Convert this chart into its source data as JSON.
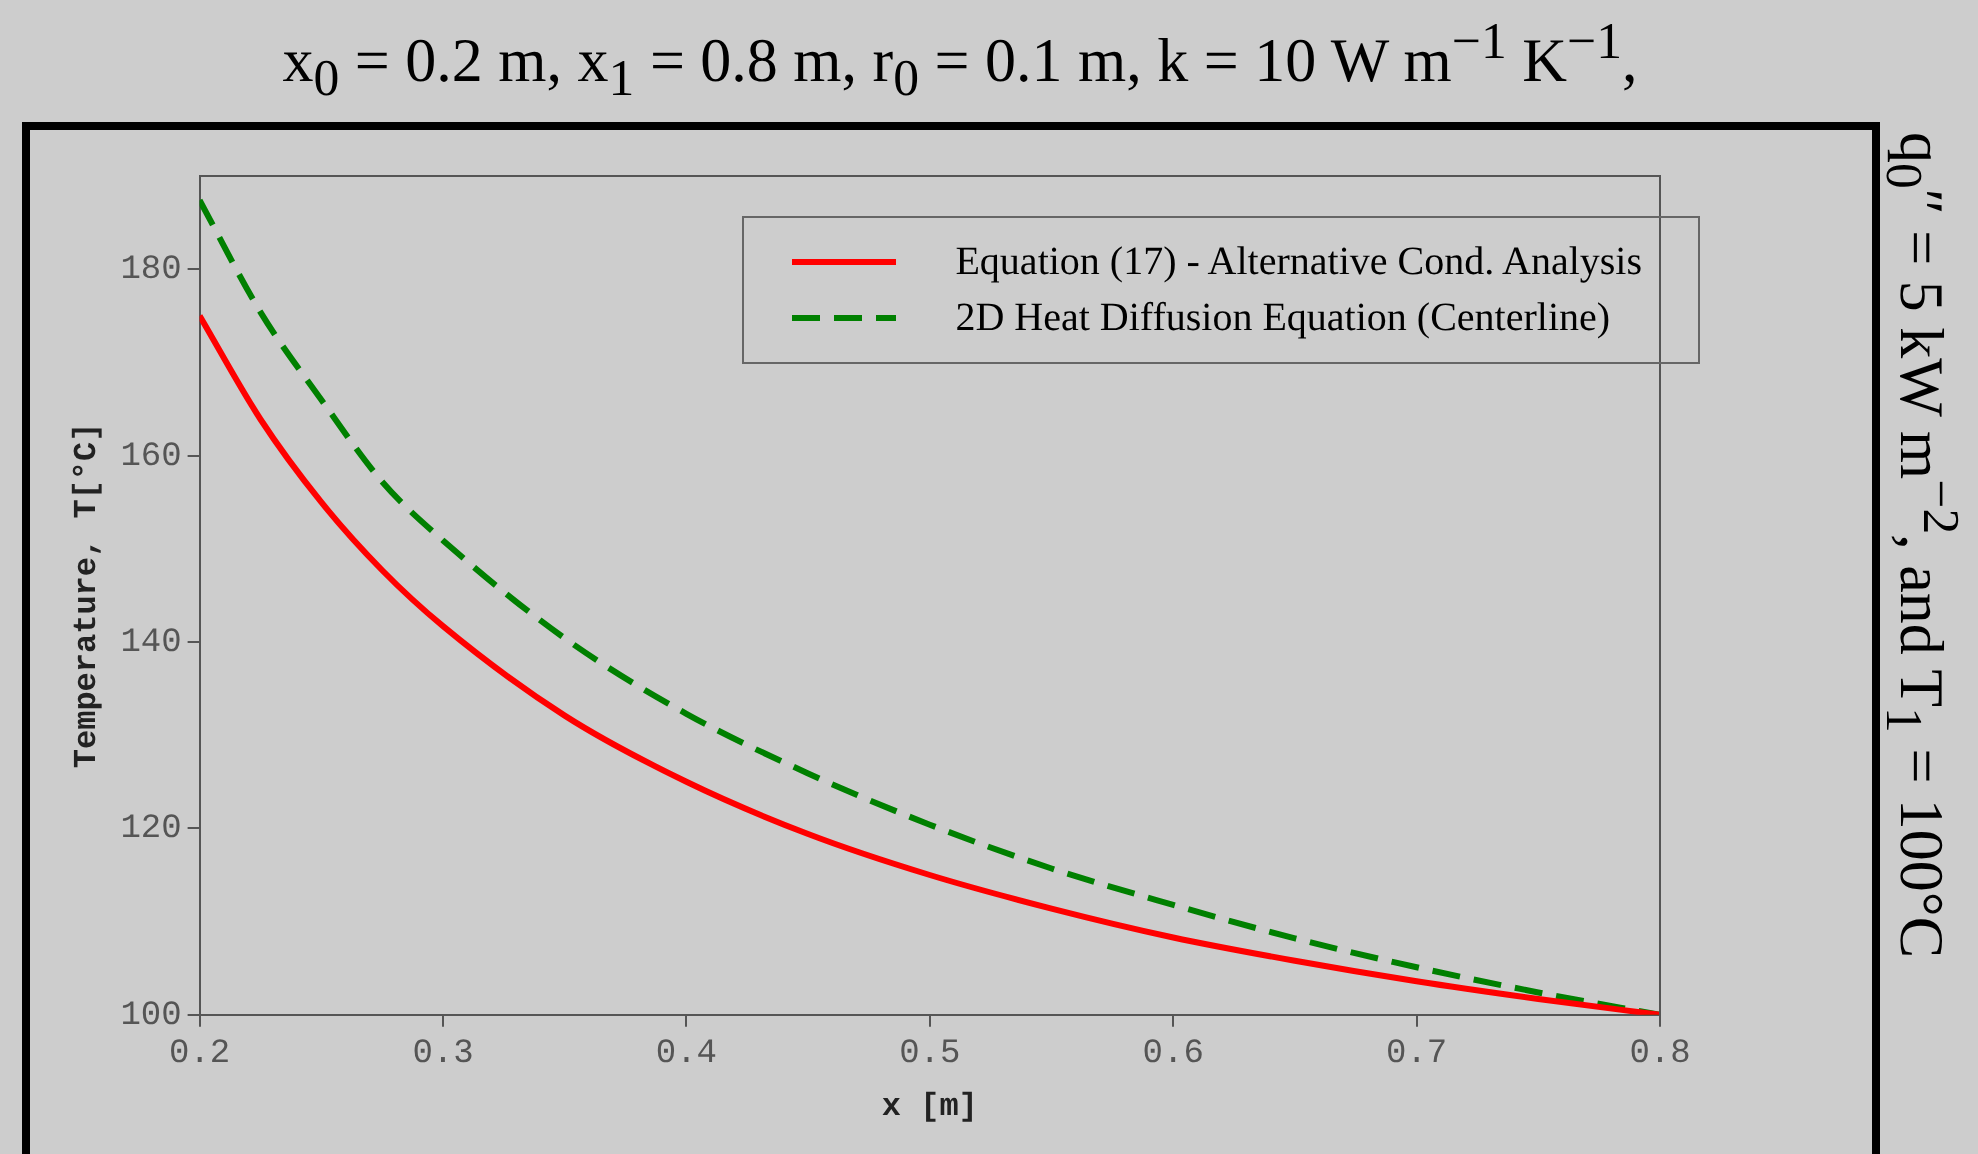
{
  "chart_data": {
    "type": "line",
    "title": "x$_{0}$ = 0.2 m, x$_{1}$ = 0.8 m, r$_{0}$ = 0.1 m, k = 10 W m$^{−1}$ K$^{−1}$,",
    "subtitle": "q$_{0}$″ = 5 kW m$^{−2}$, and T$_{1}$ = 100°C",
    "xlabel": "x [m]",
    "ylabel": "Temperature, T[°C]",
    "x": [
      0.2,
      0.225,
      0.25,
      0.275,
      0.3,
      0.35,
      0.4,
      0.45,
      0.5,
      0.55,
      0.6,
      0.65,
      0.7,
      0.75,
      0.8
    ],
    "series": [
      {
        "name": "Equation (17) - Alternative Cond. Analysis",
        "color": "#ff0000",
        "line_style": "solid",
        "values": [
          175,
          163.9,
          155,
          147.7,
          141.7,
          132.1,
          125,
          119.4,
          115,
          111.4,
          108.3,
          105.8,
          103.6,
          101.7,
          100
        ]
      },
      {
        "name": "2D Heat Diffusion Equation (Centerline)",
        "color": "#008000",
        "line_style": "dashed",
        "values": [
          187.4,
          175.4,
          166,
          157.2,
          150.9,
          140.4,
          132.3,
          125.9,
          120.4,
          115.7,
          111.8,
          108.2,
          105.1,
          102.4,
          100
        ]
      }
    ],
    "xlim": [
      0.2,
      0.8
    ],
    "xticks": [
      0.2,
      0.3,
      0.4,
      0.5,
      0.6,
      0.7,
      0.8
    ],
    "ylim": [
      100,
      190
    ],
    "yticks": [
      100,
      120,
      140,
      160,
      180
    ],
    "grid": false,
    "legend": "top right",
    "marker": "none"
  }
}
